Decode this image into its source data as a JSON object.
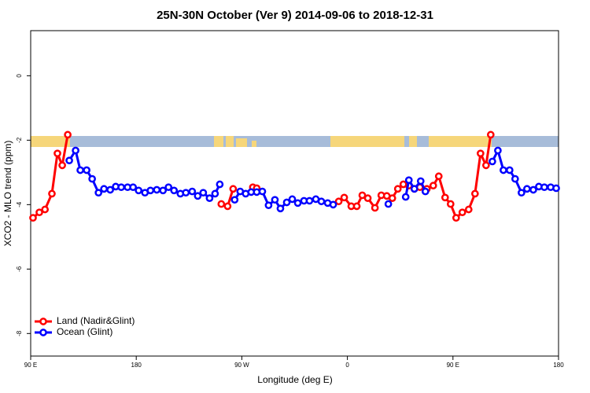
{
  "chart_data": {
    "type": "line",
    "title": "25N-30N October (Ver 9)   2014-09-06 to 2018-12-31",
    "x_label": "Longitude (deg E)",
    "y_label": "XCO2 - MLO trend (ppm)",
    "xlim": [
      90,
      540
    ],
    "xticks": [
      {
        "value": 90,
        "label": "90 E"
      },
      {
        "value": 180,
        "label": "180"
      },
      {
        "value": 270,
        "label": "90 W"
      },
      {
        "value": 360,
        "label": "0"
      },
      {
        "value": 450,
        "label": "90 E"
      },
      {
        "value": 540,
        "label": "180"
      }
    ],
    "ylim": [
      -8.7,
      1.4
    ],
    "yticks": [
      0,
      -2,
      -4,
      -6,
      -8
    ],
    "legend": "bottom-left",
    "series": [
      {
        "name": "Land (Nadir&Glint)",
        "color": "#ff0000",
        "x": [
          92.0,
          97.4,
          102.2,
          108.1,
          112.8,
          116.9,
          121.6,
          null,
          252.5,
          257.9,
          262.6,
          null,
          279.4,
          282.7,
          null,
          352.6,
          357.3,
          363.3,
          368.0,
          372.7,
          377.4,
          383.5,
          388.9,
          393.6,
          398.3,
          403.0,
          407.7,
          412.4,
          417.1,
          421.8,
          427.8,
          433.2,
          437.9,
          443.3,
          448.0,
          452.7,
          458.0,
          463.4,
          468.8,
          473.5,
          478.2,
          482.2
        ],
        "values": [
          -4.41,
          -4.24,
          -4.15,
          -3.66,
          -2.41,
          -2.78,
          -1.83,
          null,
          -3.98,
          -4.05,
          -3.51,
          null,
          -3.46,
          -3.49,
          null,
          -3.9,
          -3.78,
          -4.05,
          -4.05,
          -3.71,
          -3.8,
          -4.1,
          -3.71,
          -3.73,
          -3.8,
          -3.51,
          -3.37,
          -3.41,
          -3.51,
          -3.46,
          -3.51,
          -3.41,
          -3.12,
          -3.78,
          -3.98,
          -4.41,
          -4.24,
          -4.15,
          -3.66,
          -2.41,
          -2.78,
          -1.83
        ]
      },
      {
        "name": "Ocean (Glint)",
        "color": "#0000ff",
        "x": [
          122.9,
          128.3,
          132.3,
          137.7,
          142.4,
          147.8,
          152.5,
          157.8,
          162.5,
          167.2,
          172.6,
          177.3,
          182.0,
          187.4,
          192.1,
          197.5,
          202.8,
          207.5,
          212.2,
          217.6,
          222.3,
          227.7,
          232.4,
          237.1,
          242.5,
          247.2,
          251.2,
          null,
          263.9,
          268.6,
          273.3,
          278.0,
          282.7,
          287.5,
          292.8,
          298.2,
          302.9,
          308.3,
          313.0,
          317.7,
          323.0,
          327.7,
          333.1,
          337.8,
          343.2,
          347.9,
          null,
          394.9,
          null,
          409.7,
          412.4,
          417.1,
          422.5,
          426.5,
          null,
          483.6,
          488.3,
          493.0,
          498.3,
          503.0,
          508.4,
          513.1,
          518.5,
          523.2,
          527.9,
          533.3,
          538.0
        ],
        "values": [
          -2.63,
          -2.32,
          -2.93,
          -2.93,
          -3.2,
          -3.63,
          -3.51,
          -3.54,
          -3.44,
          -3.46,
          -3.46,
          -3.46,
          -3.56,
          -3.63,
          -3.56,
          -3.54,
          -3.56,
          -3.46,
          -3.56,
          -3.66,
          -3.63,
          -3.59,
          -3.73,
          -3.63,
          -3.8,
          -3.66,
          -3.37,
          null,
          -3.85,
          -3.59,
          -3.66,
          -3.61,
          -3.61,
          -3.59,
          -4.02,
          -3.85,
          -4.12,
          -3.93,
          -3.83,
          -3.95,
          -3.88,
          -3.88,
          -3.83,
          -3.9,
          -3.95,
          -4.0,
          null,
          -3.98,
          null,
          -3.76,
          -3.24,
          -3.51,
          -3.27,
          -3.59,
          null,
          -2.66,
          -2.32,
          -2.93,
          -2.93,
          -3.2,
          -3.63,
          -3.51,
          -3.54,
          -3.44,
          -3.46,
          -3.46,
          -3.49
        ]
      }
    ]
  }
}
